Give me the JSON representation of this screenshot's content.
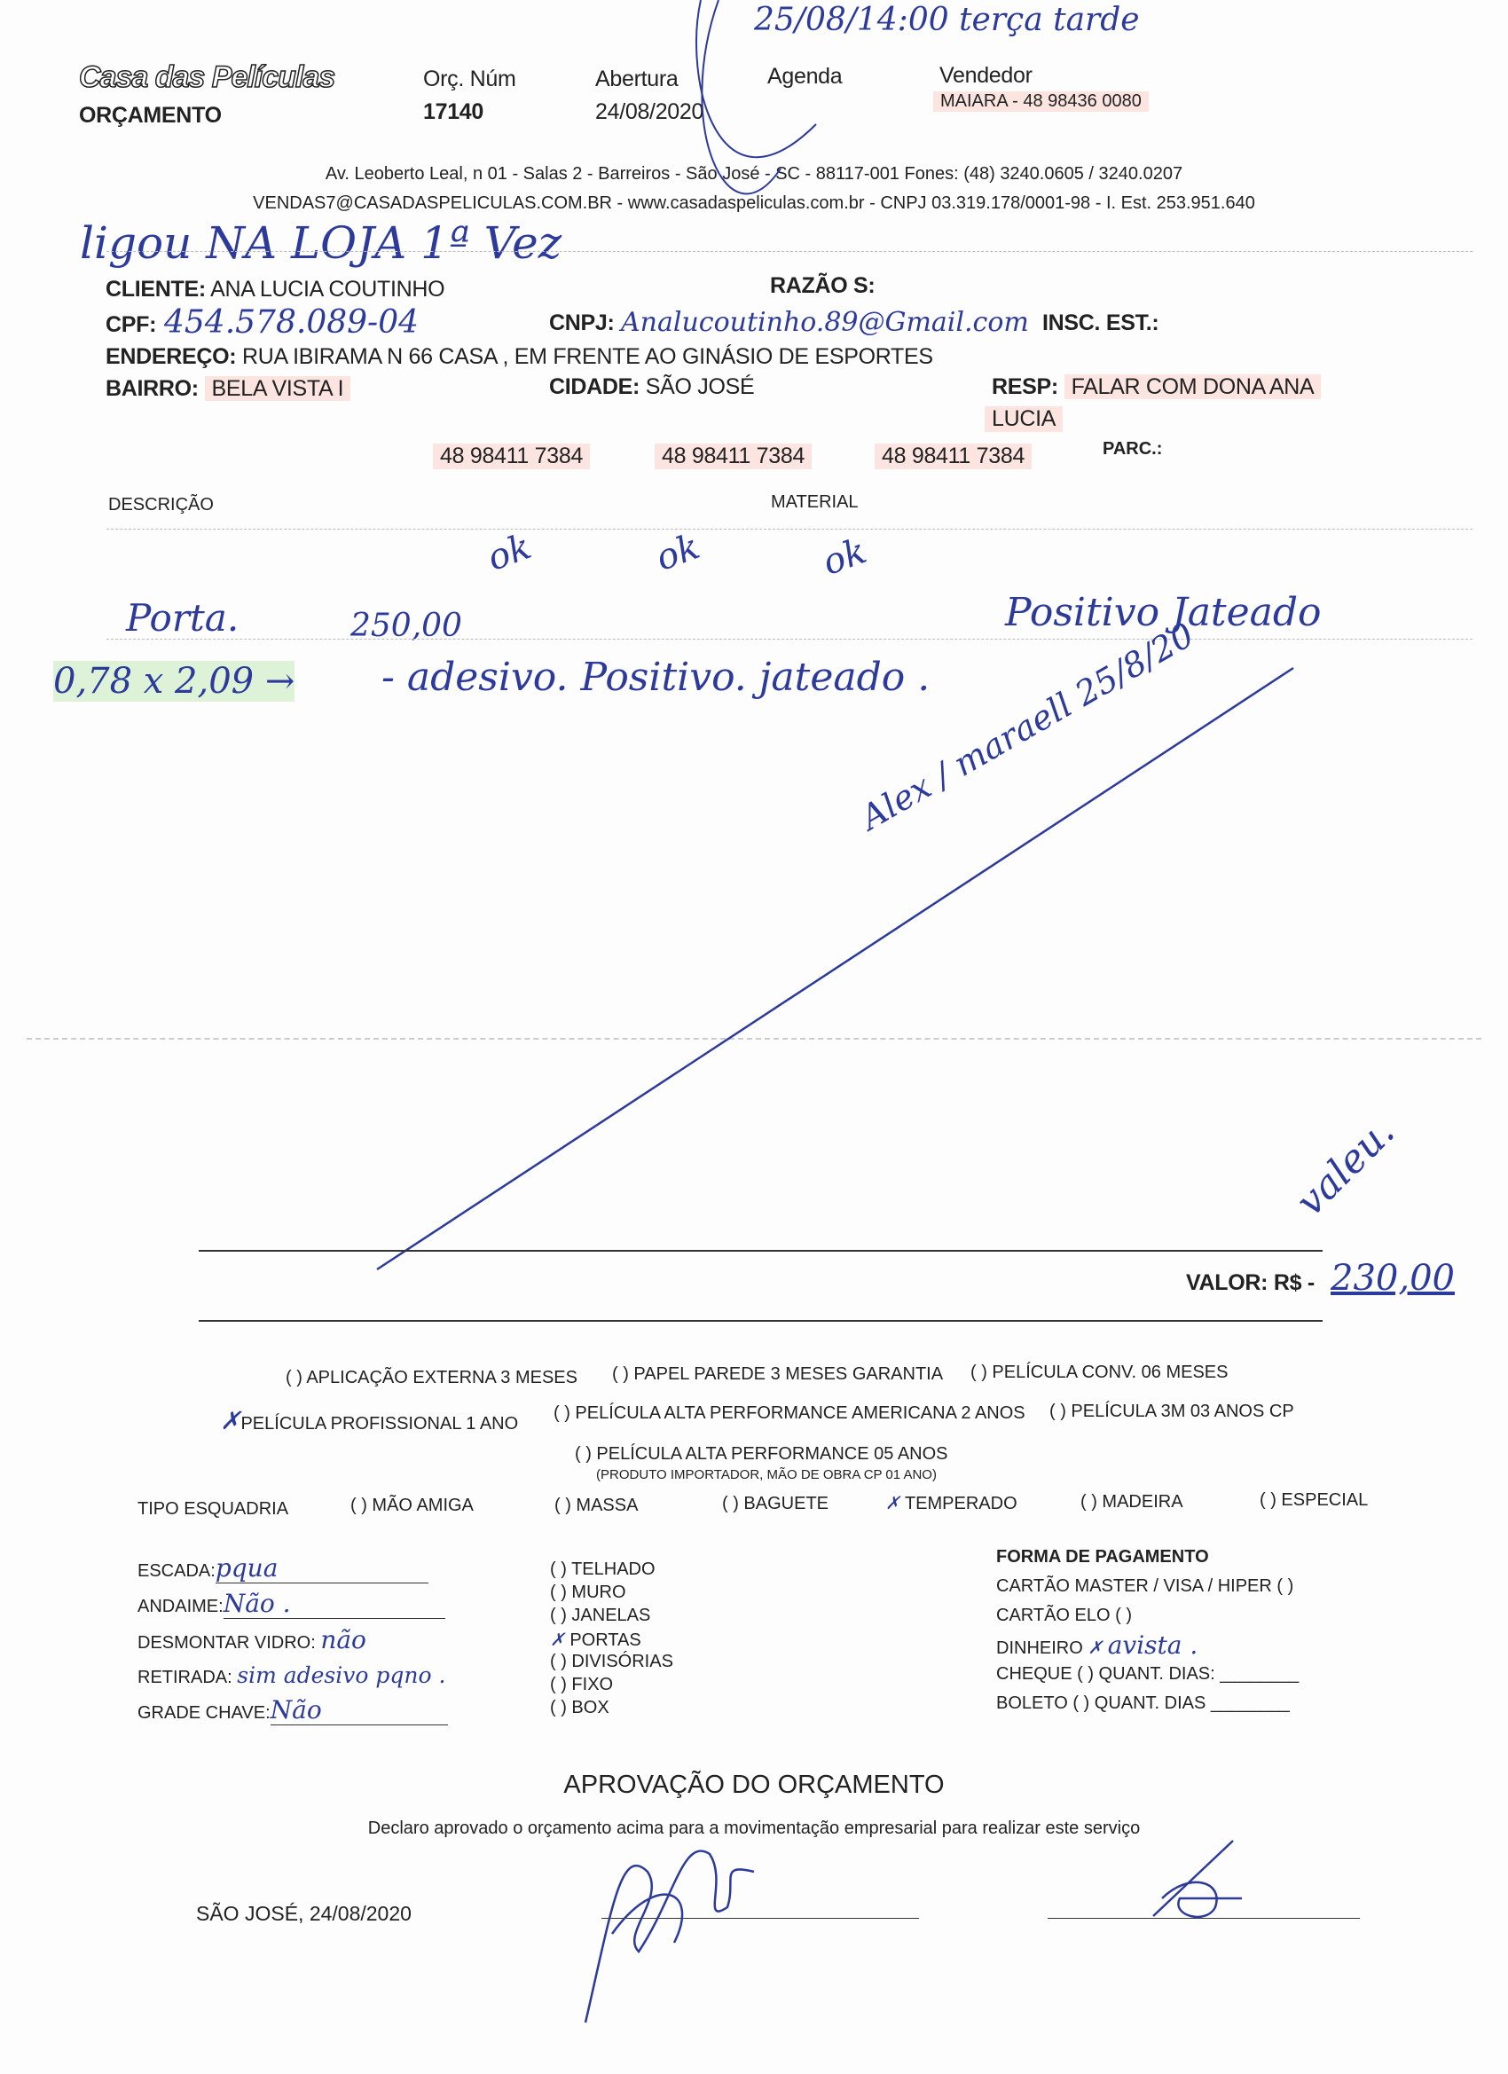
{
  "header": {
    "logo_text": "Casa das Películas",
    "doc_type": "ORÇAMENTO",
    "orc_num_label": "Orç. Núm",
    "orc_num_value": "17140",
    "abertura_label": "Abertura",
    "abertura_value": "24/08/2020",
    "agenda_label": "Agenda",
    "agenda_handwritten": "25/08/14:00 terça tarde",
    "vendedor_label": "Vendedor",
    "vendedor_value": "MAIARA - 48 98436 0080",
    "address_line": "Av. Leoberto Leal, n 01 - Salas 2 - Barreiros - São José - SC - 88117-001 Fones: (48) 3240.0605 / 3240.0207",
    "contact_line": "VENDAS7@CASADASPELICULAS.COM.BR - www.casadaspeliculas.com.br - CNPJ 03.319.178/0001-98 - I. Est. 253.951.640"
  },
  "note_handwritten": "ligou NA LOJA 1ª Vez",
  "client": {
    "cliente_label": "CLIENTE:",
    "cliente_value": "ANA LUCIA COUTINHO",
    "razao_label": "RAZÃO S:",
    "cpf_label": "CPF:",
    "cpf_value": "454.578.089-04",
    "cnpj_label": "CNPJ:",
    "email_handwritten": "Analucoutinho.89@Gmail.com",
    "insc_label": "INSC. EST.:",
    "endereco_label": "ENDEREÇO:",
    "endereco_value": "RUA IBIRAMA N 66 CASA , EM FRENTE AO GINÁSIO DE ESPORTES",
    "bairro_label": "BAIRRO:",
    "bairro_value": "BELA VISTA I",
    "cidade_label": "CIDADE:",
    "cidade_value": "SÃO JOSÉ",
    "resp_label": "RESP:",
    "resp_value": "FALAR COM DONA ANA",
    "resp_value_2": "LUCIA",
    "phones": [
      "48 98411 7384",
      "48 98411 7384",
      "48 98411 7384"
    ],
    "parc_label": "PARC.:"
  },
  "items": {
    "descricao_label": "DESCRIÇÃO",
    "material_label": "MATERIAL",
    "ok_marks": [
      "ok",
      "ok",
      "ok"
    ],
    "line1_desc": "Porta.",
    "line1_price": "250,00",
    "line1_material": "Positivo Jateado",
    "line2_measure": "0,78 x 2,09 →",
    "line2_desc": "- adesivo. Positivo. jateado .",
    "cancel_signature": "Alex / maraell 25/8/20",
    "corner_mark": "valeu."
  },
  "valor": {
    "label": "VALOR: R$ -",
    "value_handwritten": "230,00"
  },
  "options": {
    "row1": [
      "( ) APLICAÇÃO EXTERNA 3 MESES",
      "( ) PAPEL PAREDE 3 MESES GARANTIA",
      "( ) PELÍCULA CONV. 06 MESES"
    ],
    "row2": [
      "PELÍCULA PROFISSIONAL 1 ANO",
      "( ) PELÍCULA ALTA PERFORMANCE AMERICANA 2 ANOS",
      "( ) PELÍCULA 3M 03 ANOS CP"
    ],
    "row2_checked": "PELÍCULA PROFISSIONAL 1 ANO",
    "row3": "( ) PELÍCULA ALTA PERFORMANCE 05 ANOS",
    "row3_note": "(PRODUTO IMPORTADOR, MÃO DE OBRA CP 01 ANO)"
  },
  "esquadria": {
    "label": "TIPO ESQUADRIA",
    "options": [
      "( ) MÃO AMIGA",
      "( ) MASSA",
      "( ) BAGUETE",
      "TEMPERADO",
      "( ) MADEIRA",
      "( ) ESPECIAL"
    ],
    "checked": "TEMPERADO"
  },
  "service": [
    {
      "label": "ESCADA:",
      "value": "pqua"
    },
    {
      "label": "ANDAIME:",
      "value": "Não ."
    },
    {
      "label": "DESMONTAR VIDRO:",
      "value": "não"
    },
    {
      "label": "RETIRADA:",
      "value": "sim adesivo pqno ."
    },
    {
      "label": "GRADE CHAVE:",
      "value": "Não"
    }
  ],
  "locais": {
    "options": [
      "( ) TELHADO",
      "( ) MURO",
      "( ) JANELAS",
      "PORTAS",
      "( ) DIVISÓRIAS",
      "( ) FIXO",
      "( ) BOX"
    ],
    "checked": "PORTAS"
  },
  "pagamento": {
    "title": "FORMA DE PAGAMENTO",
    "rows": [
      "CARTÃO MASTER / VISA / HIPER  (   )",
      "CARTÃO ELO  (   )",
      "DINHEIRO",
      "CHEQUE   (   )   QUANT. DIAS: ________",
      "BOLETO   (   )   QUANT. DIAS ________"
    ],
    "dinheiro_handwritten": "avista ."
  },
  "aprovacao": {
    "title": "APROVAÇÃO DO ORÇAMENTO",
    "text": "Declaro aprovado o orçamento acima para a movimentação empresarial para realizar este serviço",
    "place_date": "SÃO JOSÉ, 24/08/2020"
  },
  "colors": {
    "ink": "#2c3a9c",
    "highlight_pink": "#f9c8be",
    "highlight_green": "#c8ebbe",
    "print": "#222222"
  }
}
